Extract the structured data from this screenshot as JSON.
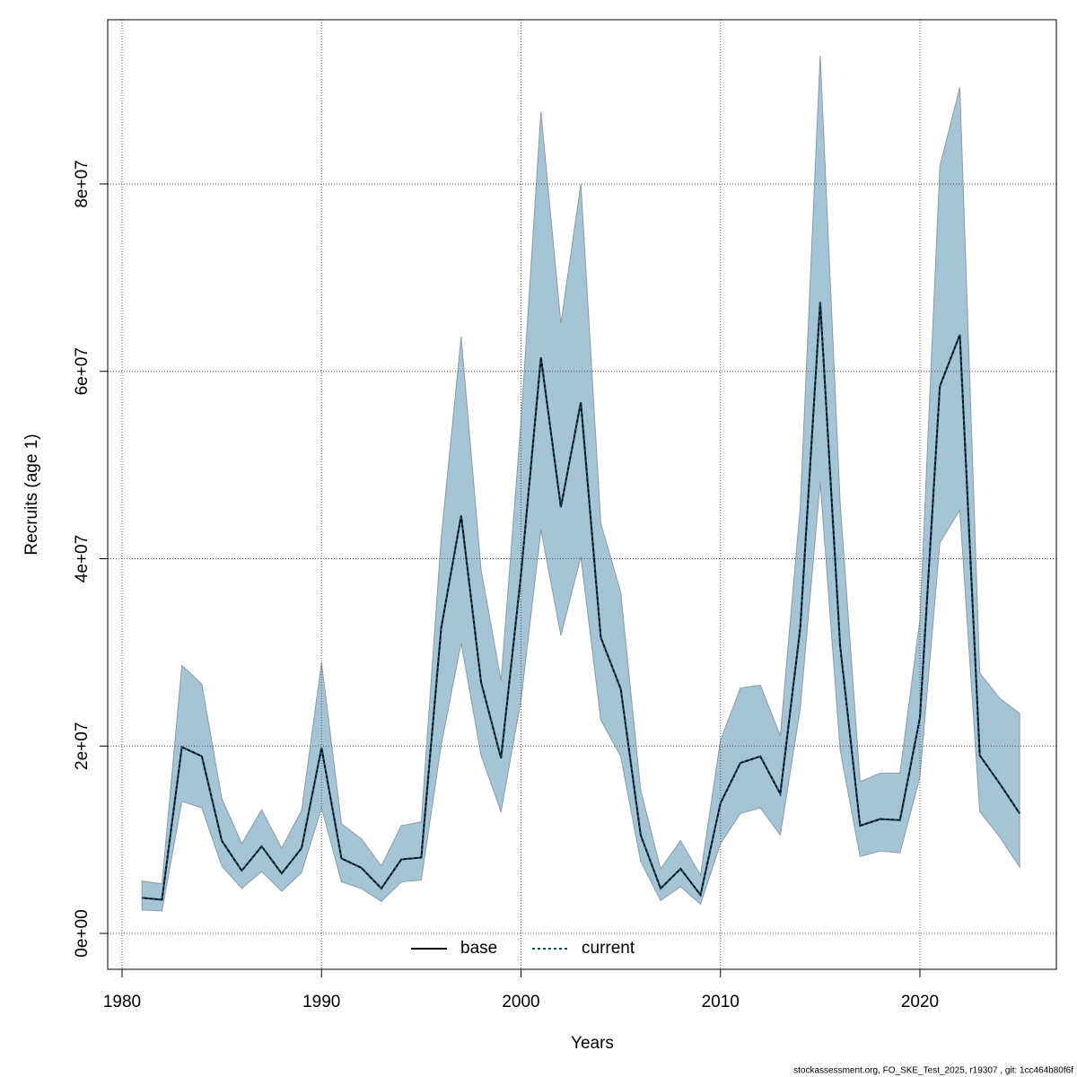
{
  "chart_data": {
    "type": "line",
    "xlabel": "Years",
    "ylabel": "Recruits (age 1)",
    "footer": "stockassessment.org, FO_SKE_Test_2025, r19307 , git: 1cc464b80f6f",
    "x": [
      1981,
      1982,
      1983,
      1984,
      1985,
      1986,
      1987,
      1988,
      1989,
      1990,
      1991,
      1992,
      1993,
      1994,
      1995,
      1996,
      1997,
      1998,
      1999,
      2000,
      2001,
      2002,
      2003,
      2004,
      2005,
      2006,
      2007,
      2008,
      2009,
      2010,
      2011,
      2012,
      2013,
      2014,
      2015,
      2016,
      2017,
      2018,
      2019,
      2020,
      2021,
      2022,
      2023,
      2024,
      2025
    ],
    "series": [
      {
        "name": "base",
        "color": "#000000",
        "dash": "solid",
        "values": [
          3800000.0,
          3600000.0,
          19900000.0,
          18900000.0,
          9900000.0,
          6700000.0,
          9300000.0,
          6400000.0,
          9100000.0,
          19800000.0,
          8000000.0,
          7000000.0,
          4800000.0,
          7900000.0,
          8100000.0,
          32600000.0,
          44600000.0,
          26800000.0,
          18700000.0,
          38300000.0,
          61500000.0,
          45500000.0,
          56700000.0,
          31600000.0,
          26100000.0,
          10500000.0,
          4800000.0,
          6900000.0,
          4100000.0,
          13900000.0,
          18200000.0,
          18900000.0,
          14900000.0,
          32600000.0,
          67400000.0,
          30700000.0,
          11500000.0,
          12200000.0,
          12100000.0,
          23000000.0,
          58400000.0,
          63900000.0,
          19000000.0,
          16000000.0,
          12800000.0
        ]
      },
      {
        "name": "current",
        "color": "#0b4f6c",
        "dash": "dashed",
        "values": [
          3800000.0,
          3600000.0,
          19900000.0,
          18900000.0,
          9900000.0,
          6700000.0,
          9300000.0,
          6400000.0,
          9100000.0,
          19800000.0,
          8000000.0,
          7000000.0,
          4800000.0,
          7900000.0,
          8100000.0,
          32600000.0,
          44600000.0,
          26800000.0,
          18700000.0,
          38300000.0,
          61500000.0,
          45500000.0,
          56700000.0,
          31600000.0,
          26100000.0,
          10500000.0,
          4800000.0,
          6900000.0,
          4100000.0,
          13900000.0,
          18200000.0,
          18900000.0,
          14900000.0,
          32600000.0,
          67400000.0,
          30700000.0,
          11500000.0,
          12200000.0,
          12100000.0,
          23000000.0,
          58400000.0,
          63900000.0,
          19000000.0,
          16000000.0,
          12800000.0
        ]
      }
    ],
    "band": {
      "color": "#a5c5d6",
      "upper": [
        5600000.0,
        5300000.0,
        28600000.0,
        26600000.0,
        14400000.0,
        9600000.0,
        13200000.0,
        9100000.0,
        13100000.0,
        28900000.0,
        11700000.0,
        10100000.0,
        7200000.0,
        11500000.0,
        11900000.0,
        42200000.0,
        63700000.0,
        38800000.0,
        27000000.0,
        54600000.0,
        87700000.0,
        65100000.0,
        80000000.0,
        43800000.0,
        36400000.0,
        15300000.0,
        6900000.0,
        9900000.0,
        6200000.0,
        20600000.0,
        26200000.0,
        26500000.0,
        21100000.0,
        45500000.0,
        93700000.0,
        46000000.0,
        16200000.0,
        17100000.0,
        17100000.0,
        33500000.0,
        81900000.0,
        90300000.0,
        27800000.0,
        25100000.0,
        23500000.0
      ],
      "lower": [
        2500000.0,
        2400000.0,
        14100000.0,
        13400000.0,
        7200000.0,
        4800000.0,
        6600000.0,
        4500000.0,
        6500000.0,
        13400000.0,
        5500000.0,
        4800000.0,
        3400000.0,
        5500000.0,
        5700000.0,
        20100000.0,
        31000000.0,
        19000000.0,
        13000000.0,
        24900000.0,
        43100000.0,
        31800000.0,
        40200000.0,
        22800000.0,
        18900000.0,
        7700000.0,
        3500000.0,
        5000000.0,
        3100000.0,
        9600000.0,
        12800000.0,
        13400000.0,
        10500000.0,
        24000000.0,
        48200000.0,
        19600000.0,
        8200000.0,
        8800000.0,
        8600000.0,
        16700000.0,
        41700000.0,
        45200000.0,
        13000000.0,
        10300000.0,
        7100000.0
      ]
    },
    "xlim": [
      1979.28,
      2026.84
    ],
    "ylim": [
      -3830000.0,
      97530000.0
    ],
    "xticks": [
      1980,
      1990,
      2000,
      2010,
      2020
    ],
    "yticks": [
      {
        "value": 0,
        "label": "0e+00"
      },
      {
        "value": 20000000.0,
        "label": "2e+07"
      },
      {
        "value": 40000000.0,
        "label": "4e+07"
      },
      {
        "value": 60000000.0,
        "label": "6e+07"
      },
      {
        "value": 80000000.0,
        "label": "8e+07"
      }
    ],
    "grid": true,
    "legend": "bottom"
  }
}
